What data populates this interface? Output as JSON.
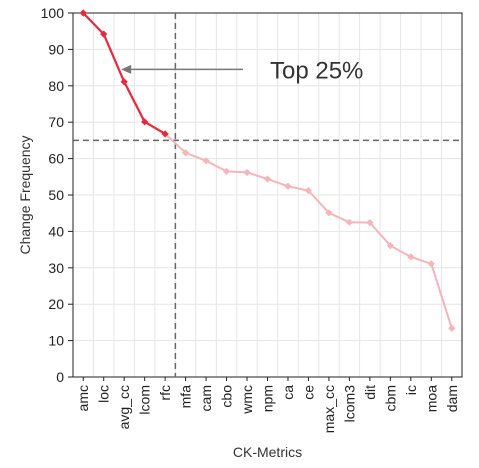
{
  "chart_data": {
    "type": "line",
    "xlabel": "CK-Metrics",
    "ylabel": "Change Frequency",
    "ylim": [
      0,
      100
    ],
    "yticks": [
      0,
      10,
      20,
      30,
      40,
      50,
      60,
      70,
      80,
      90,
      100
    ],
    "categories": [
      "amc",
      "loc",
      "avg_cc",
      "lcom",
      "rfc",
      "mfa",
      "cam",
      "cbo",
      "wmc",
      "npm",
      "ca",
      "ce",
      "max_cc",
      "lcom3",
      "dit",
      "cbm",
      "ic",
      "moa",
      "dam"
    ],
    "values": [
      100,
      94.2,
      81.1,
      70.1,
      66.8,
      61.6,
      59.4,
      56.5,
      56.2,
      54.4,
      52.4,
      51.2,
      45.1,
      42.5,
      42.4,
      36.1,
      33.0,
      31.1,
      13.4
    ],
    "highlight_count": 5,
    "threshold_y": 65,
    "grid": true,
    "annotation": {
      "text": "Top 25%",
      "arrow_direction": "left"
    },
    "colors": {
      "highlight": "#e8283c",
      "rest": "#f5b5ba",
      "guide": "#666666",
      "grid": "#e6e6e6",
      "arrow": "#777777"
    }
  }
}
